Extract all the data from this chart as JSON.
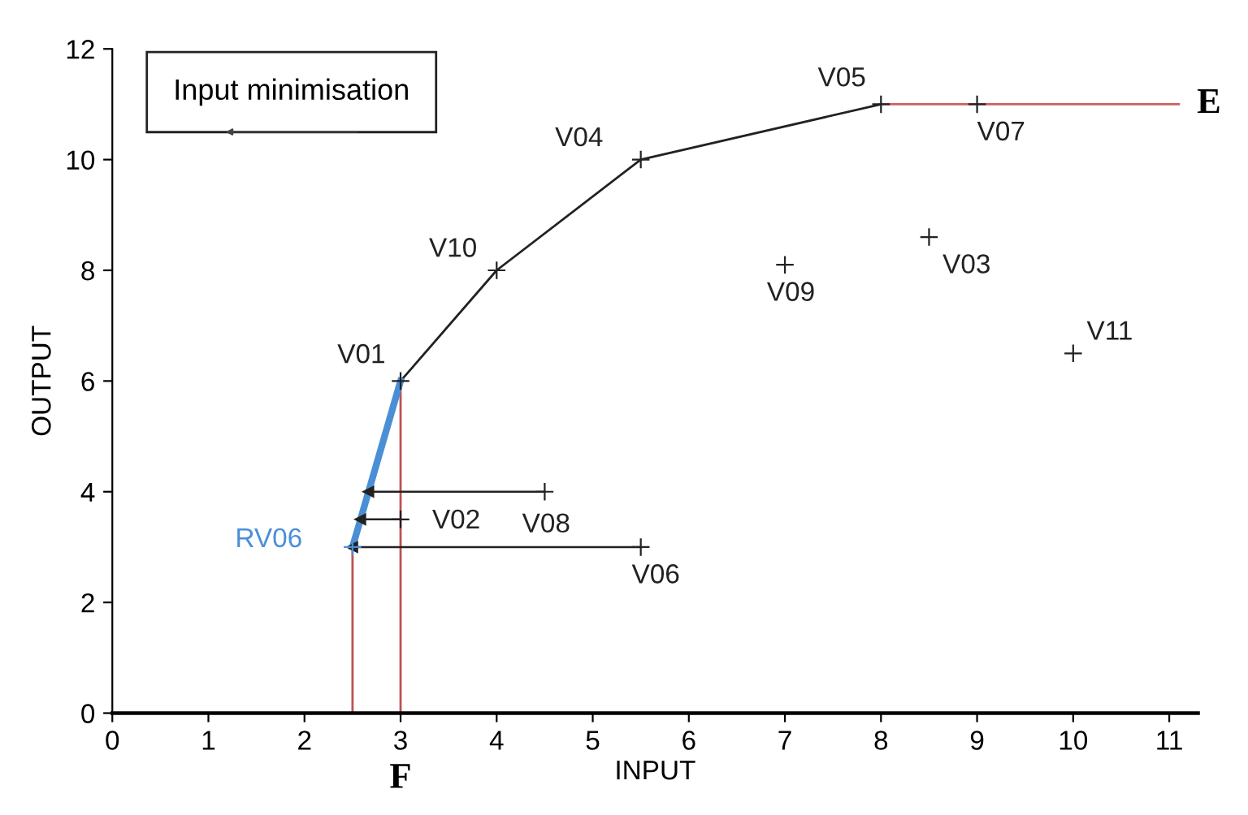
{
  "chart_data": {
    "type": "scatter",
    "xlabel": "INPUT",
    "ylabel": "OUTPUT",
    "xlim": [
      0,
      11.3
    ],
    "ylim": [
      0,
      12
    ],
    "xticks": [
      0,
      1,
      2,
      3,
      4,
      5,
      6,
      7,
      8,
      9,
      10,
      11
    ],
    "yticks": [
      0,
      2,
      4,
      6,
      8,
      10,
      12
    ],
    "grid": false,
    "legend": false,
    "series": [
      {
        "type": "line",
        "color": "#222222",
        "x": [
          3,
          4,
          5.5,
          8
        ],
        "values": [
          6,
          8,
          10,
          11
        ],
        "marker": "none"
      },
      {
        "type": "line",
        "color": "#d06060",
        "x": [
          8,
          11.1
        ],
        "values": [
          11,
          11
        ],
        "marker": "none"
      },
      {
        "type": "line",
        "color": "#c05050",
        "x": [
          2.5,
          2.5
        ],
        "values": [
          0,
          3
        ],
        "marker": "none"
      },
      {
        "type": "line",
        "color": "#c05050",
        "x": [
          3,
          3
        ],
        "values": [
          0,
          6
        ],
        "marker": "none"
      },
      {
        "type": "line",
        "color": "#4a8fd6",
        "x": [
          2.5,
          3
        ],
        "values": [
          3,
          6
        ],
        "marker": "none"
      },
      {
        "type": "line",
        "color": "#222222",
        "x": [
          4.5,
          2.667
        ],
        "values": [
          4,
          4
        ],
        "marker": "triangle"
      },
      {
        "type": "line",
        "color": "#222222",
        "x": [
          3,
          2.583
        ],
        "values": [
          3.5,
          3.5
        ],
        "marker": "triangle"
      },
      {
        "type": "line",
        "color": "#222222",
        "x": [
          5.5,
          2.5
        ],
        "values": [
          3,
          3
        ],
        "marker": "triangle"
      },
      {
        "color": "#222222",
        "marker": "cross",
        "x": [
          3,
          4,
          5.5,
          8,
          9,
          7,
          8.5,
          10,
          4.5,
          3,
          5.5
        ],
        "values": [
          6,
          8,
          10,
          11,
          11,
          8.1,
          8.6,
          6.5,
          4,
          3.5,
          3
        ],
        "value_labels": [
          "V01",
          "V10",
          "V04",
          "V05",
          "V07",
          "V09",
          "V03",
          "V11",
          "V08",
          "V02",
          "V06"
        ]
      },
      {
        "color": "#4a8fd6",
        "marker": "cross",
        "x": [
          2.5
        ],
        "values": [
          3
        ],
        "value_labels": [
          "RV06"
        ]
      }
    ],
    "annotations": [
      "Input minimisation",
      {
        "text": "E",
        "x": 11.1,
        "y": 11
      },
      {
        "text": "F",
        "x": 3,
        "y": 0
      }
    ]
  }
}
